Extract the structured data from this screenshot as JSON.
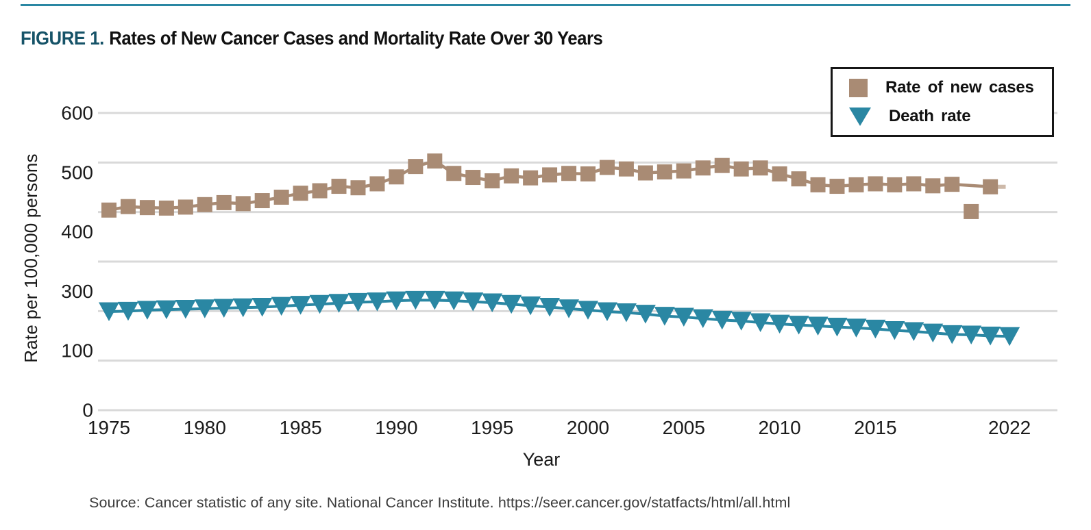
{
  "figure": {
    "label": "FIGURE 1.",
    "title": "Rates of New Cancer Cases and Mortality Rate Over 30 Years"
  },
  "legend": {
    "items": [
      {
        "label": "Rate of new cases",
        "marker": "square",
        "color": "#a98b74"
      },
      {
        "label": "Death rate",
        "marker": "triangle-down",
        "color": "#2a87a3"
      }
    ]
  },
  "axes": {
    "y_title": "Rate per 100,000 persons",
    "y_tick_labels": [
      "600",
      "500",
      "400",
      "300",
      "100",
      "0"
    ],
    "x_title": "Year",
    "x_tick_labels": [
      "1975",
      "1980",
      "1985",
      "1990",
      "1995",
      "2000",
      "2005",
      "2010",
      "2015",
      "2022"
    ]
  },
  "source": "Source: Cancer statistic of any site. National Cancer Institute. https://seer.cancer.gov/statfacts/html/all.html",
  "colors": {
    "new_cases": "#a98b74",
    "death_rate": "#2a87a3",
    "gridline": "#d9d9d9",
    "figure_label": "#165368",
    "top_rule": "#2a87a3",
    "trailing_segment": "#cdb9a9"
  },
  "chart_data": {
    "type": "line",
    "title": "Rates of New Cancer Cases and Mortality Rate Over 30 Years",
    "xlabel": "Year",
    "ylabel": "Rate per 100,000 persons",
    "ylim": [
      0,
      600
    ],
    "xlim": [
      1974.5,
      2023
    ],
    "grid": "horizontal, 7 evenly spaced lines (100-unit steps); y labels skip 200 and are evenly spread",
    "legend_position": "top-right",
    "line_skips_year": 2020,
    "trailing_segment": {
      "from_year": 2021,
      "to_year": 2021.8,
      "value": 451
    },
    "series": [
      {
        "name": "Rate of new cases",
        "marker": "square",
        "color": "#a98b74",
        "x": [
          1975,
          1976,
          1977,
          1978,
          1979,
          1980,
          1981,
          1982,
          1983,
          1984,
          1985,
          1986,
          1987,
          1988,
          1989,
          1990,
          1991,
          1992,
          1993,
          1994,
          1995,
          1996,
          1997,
          1998,
          1999,
          2000,
          2001,
          2002,
          2003,
          2004,
          2005,
          2006,
          2007,
          2008,
          2009,
          2010,
          2011,
          2012,
          2013,
          2014,
          2015,
          2016,
          2017,
          2018,
          2019,
          2020,
          2021
        ],
        "y": [
          404,
          411,
          409,
          408,
          410,
          415,
          419,
          417,
          423,
          430,
          438,
          443,
          452,
          449,
          457,
          471,
          492,
          503,
          478,
          470,
          463,
          473,
          469,
          475,
          478,
          477,
          490,
          487,
          479,
          481,
          483,
          489,
          494,
          487,
          489,
          477,
          467,
          455,
          452,
          455,
          457,
          455,
          457,
          453,
          456,
          401,
          451
        ]
      },
      {
        "name": "Death rate",
        "marker": "triangle-down",
        "color": "#2a87a3",
        "x": [
          1975,
          1976,
          1977,
          1978,
          1979,
          1980,
          1981,
          1982,
          1983,
          1984,
          1985,
          1986,
          1987,
          1988,
          1989,
          1990,
          1991,
          1992,
          1993,
          1994,
          1995,
          1996,
          1997,
          1998,
          1999,
          2000,
          2001,
          2002,
          2003,
          2004,
          2005,
          2006,
          2007,
          2008,
          2009,
          2010,
          2011,
          2012,
          2013,
          2014,
          2015,
          2016,
          2017,
          2018,
          2019,
          2020,
          2021,
          2022
        ],
        "y": [
          199,
          200,
          202,
          203,
          204,
          205,
          206,
          207,
          208,
          210,
          212,
          214,
          216,
          218,
          219,
          221,
          222,
          222,
          221,
          219,
          217,
          214,
          211,
          208,
          205,
          202,
          199,
          197,
          194,
          190,
          188,
          185,
          182,
          180,
          177,
          174,
          172,
          170,
          168,
          166,
          164,
          161,
          159,
          156,
          153,
          152,
          150,
          149
        ]
      }
    ]
  }
}
